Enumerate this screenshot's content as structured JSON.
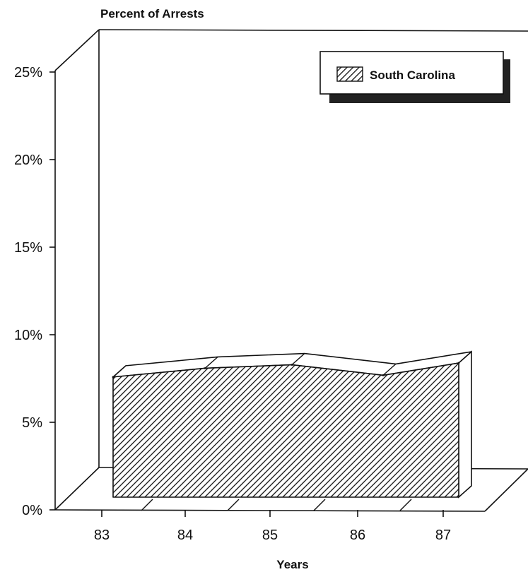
{
  "chart_data": {
    "type": "area",
    "categories": [
      "83",
      "84",
      "85",
      "86",
      "87"
    ],
    "series": [
      {
        "name": "South Carolina",
        "values": [
          6.9,
          7.4,
          7.6,
          7.0,
          7.7
        ]
      }
    ],
    "ylabel": "Percent of Arrests",
    "xlabel": "Years",
    "ylim": [
      0,
      25
    ],
    "yticks": [
      "0%",
      "5%",
      "10%",
      "15%",
      "20%",
      "25%"
    ],
    "yticks_values": [
      0,
      5,
      10,
      15,
      20,
      25
    ],
    "legend": "top-right",
    "three_d": true,
    "grid": false,
    "fill_pattern": "diagonal-hatch"
  }
}
